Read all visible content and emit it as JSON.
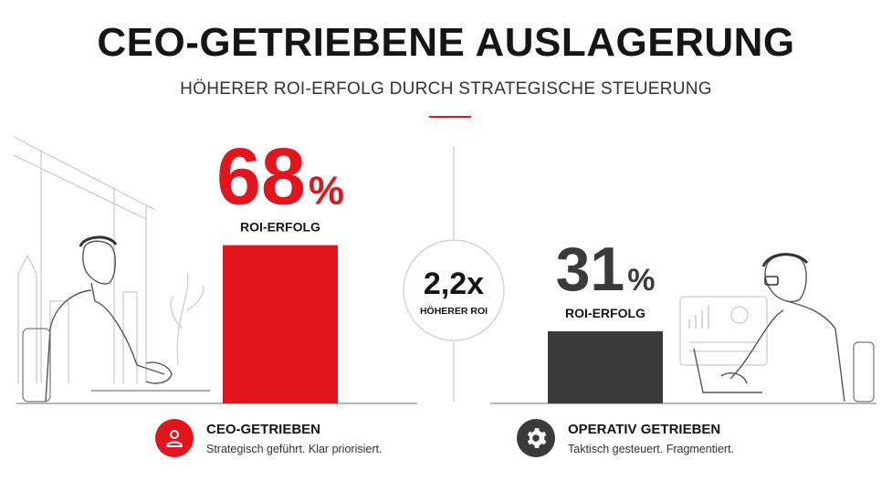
{
  "header": {
    "title": "CEO-GETRIEBENE AUSLAGERUNG",
    "subtitle": "HÖHERER ROI-ERFOLG DURCH STRATEGISCHE STEUERUNG"
  },
  "colors": {
    "accent": "#e3141b",
    "dark": "#3a3a3a",
    "text": "#151515",
    "line": "#9a9a9a"
  },
  "comparison": {
    "value": "2,2x",
    "label": "HÖHERER ROI"
  },
  "legend": [
    {
      "title": "CEO-GETRIEBEN",
      "desc": "Strategisch geführt. Klar priorisiert.",
      "icon": "person-icon"
    },
    {
      "title": "OPERATIV GETRIEBEN",
      "desc": "Taktisch gesteuert. Fragmentiert.",
      "icon": "gear-icon"
    }
  ],
  "chart_data": {
    "type": "bar",
    "categories": [
      "CEO-GETRIEBEN",
      "OPERATIV GETRIEBEN"
    ],
    "values": [
      68,
      31
    ],
    "value_labels": [
      "68",
      "31"
    ],
    "unit": "%",
    "bar_label": "ROI-ERFOLG",
    "bar_colors": [
      "#e3141b",
      "#3a3a3a"
    ],
    "label_colors": [
      "#e3141b",
      "#3a3a3a"
    ],
    "grid": false
  }
}
